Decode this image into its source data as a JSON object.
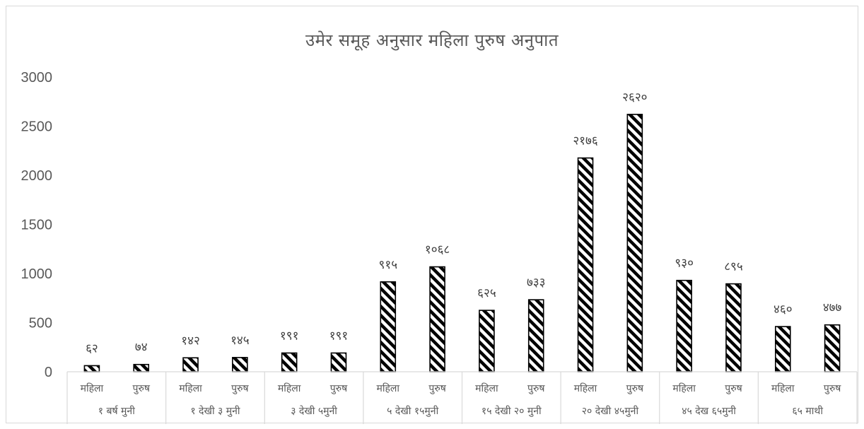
{
  "chart_data": {
    "type": "bar",
    "title": "उमेर समूह अनुसार महिला पुरुष अनुपात",
    "xlabel": "",
    "ylabel": "",
    "ylim": [
      0,
      3000
    ],
    "yticks": [
      0,
      500,
      1000,
      1500,
      2000,
      2500,
      3000
    ],
    "grid": false,
    "legend": "none",
    "groups": [
      {
        "label": "१ बर्ष मुनी",
        "categories": [
          "महिला",
          "पुरुष"
        ],
        "values": [
          62,
          74
        ],
        "data_labels": [
          "६२",
          "७४"
        ]
      },
      {
        "label": "१ देखी ३ मुनी",
        "categories": [
          "महिला",
          "पुरुष"
        ],
        "values": [
          142,
          145
        ],
        "data_labels": [
          "१४२",
          "१४५"
        ]
      },
      {
        "label": "३ देखी ५मुनी",
        "categories": [
          "महिला",
          "पुरुष"
        ],
        "values": [
          191,
          191
        ],
        "data_labels": [
          "१९१",
          "१९१"
        ]
      },
      {
        "label": "५ देखी १५मुनी",
        "categories": [
          "महिला",
          "पुरुष"
        ],
        "values": [
          915,
          1068
        ],
        "data_labels": [
          "९१५",
          "१०६८"
        ]
      },
      {
        "label": "१५ देखी २० मुनी",
        "categories": [
          "महिला",
          "पुरुष"
        ],
        "values": [
          625,
          733
        ],
        "data_labels": [
          "६२५",
          "७३३"
        ]
      },
      {
        "label": "२० देखी ४५मुनी",
        "categories": [
          "महिला",
          "पुरुष"
        ],
        "values": [
          2176,
          2620
        ],
        "data_labels": [
          "२१७६",
          "२६२०"
        ]
      },
      {
        "label": "४५ देख ६५मुनी",
        "categories": [
          "महिला",
          "पुरुष"
        ],
        "values": [
          930,
          895
        ],
        "data_labels": [
          "९३०",
          "८९५"
        ]
      },
      {
        "label": "६५ माथी",
        "categories": [
          "महिला",
          "पुरुष"
        ],
        "values": [
          460,
          477
        ],
        "data_labels": [
          "४६०",
          "४७७"
        ]
      }
    ],
    "bar_fill": "diagonal-stripes",
    "colors": {
      "bar_stroke": "#000000",
      "stripe": "#000000",
      "text": "#595959",
      "axis": "#d9d9d9"
    }
  }
}
